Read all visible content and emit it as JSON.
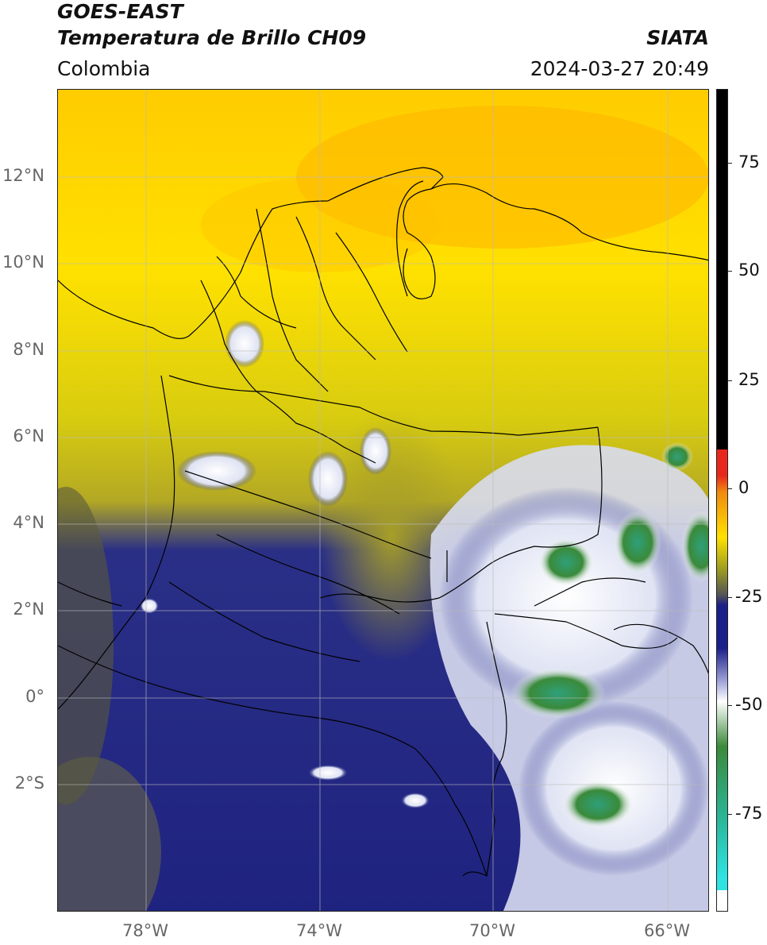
{
  "header": {
    "satellite": "GOES-EAST",
    "product": "Temperatura de Brillo CH09",
    "region": "Colombia",
    "organization": "SIATA",
    "timestamp": "2024-03-27 20:49"
  },
  "map": {
    "lat_labels": [
      "12°N",
      "10°N",
      "8°N",
      "6°N",
      "4°N",
      "2°N",
      "0°",
      "2°S"
    ],
    "lon_labels": [
      "78°W",
      "74°W",
      "70°W",
      "66°W"
    ],
    "gridlines": true
  },
  "colorbar": {
    "tick_labels": [
      "75",
      "50",
      "25",
      "0",
      "-25",
      "-50",
      "-75"
    ],
    "colors": {
      "black": "#000000",
      "red": "#e8281c",
      "orange": "#f08a10",
      "yellow": "#ffe100",
      "olive": "#9a9a22",
      "gray": "#555555",
      "navy": "#1b1f8a",
      "white": "#ffffff",
      "green": "#3a8a3a",
      "teal": "#2ab79a",
      "cyan": "#2fe3e3"
    }
  }
}
